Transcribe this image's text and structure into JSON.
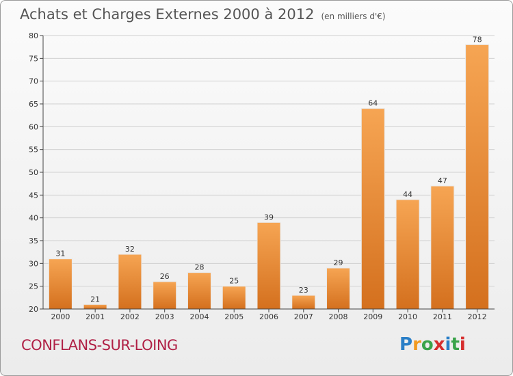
{
  "header": {
    "title": "Achats et Charges Externes 2000 à 2012",
    "subtitle": "(en milliers d'€)"
  },
  "footer": {
    "city": "CONFLANS-SUR-LOING",
    "logo_letters": [
      "P",
      "r",
      "o",
      "x",
      "i",
      "t",
      "i"
    ],
    "logo_colors": [
      "#2a7fc7",
      "#f29a1f",
      "#3aa34a",
      "#d62d2d",
      "#2a7fc7",
      "#3aa34a",
      "#d62d2d"
    ]
  },
  "colors": {
    "bar_light": "#f6a553",
    "bar_dark": "#d4701e",
    "grid": "#d0d0d0",
    "axis": "#444444"
  },
  "chart_data": {
    "type": "bar",
    "title": "Achats et Charges Externes 2000 à 2012",
    "subtitle": "(en milliers d'€)",
    "xlabel": "",
    "ylabel": "",
    "categories": [
      "2000",
      "2001",
      "2002",
      "2003",
      "2004",
      "2005",
      "2006",
      "2007",
      "2008",
      "2009",
      "2010",
      "2011",
      "2012"
    ],
    "values": [
      31,
      21,
      32,
      26,
      28,
      25,
      39,
      23,
      29,
      64,
      44,
      47,
      78
    ],
    "ylim": [
      20,
      80
    ],
    "yticks": [
      20,
      25,
      30,
      35,
      40,
      45,
      50,
      55,
      60,
      65,
      70,
      75,
      80
    ],
    "grid": true
  }
}
